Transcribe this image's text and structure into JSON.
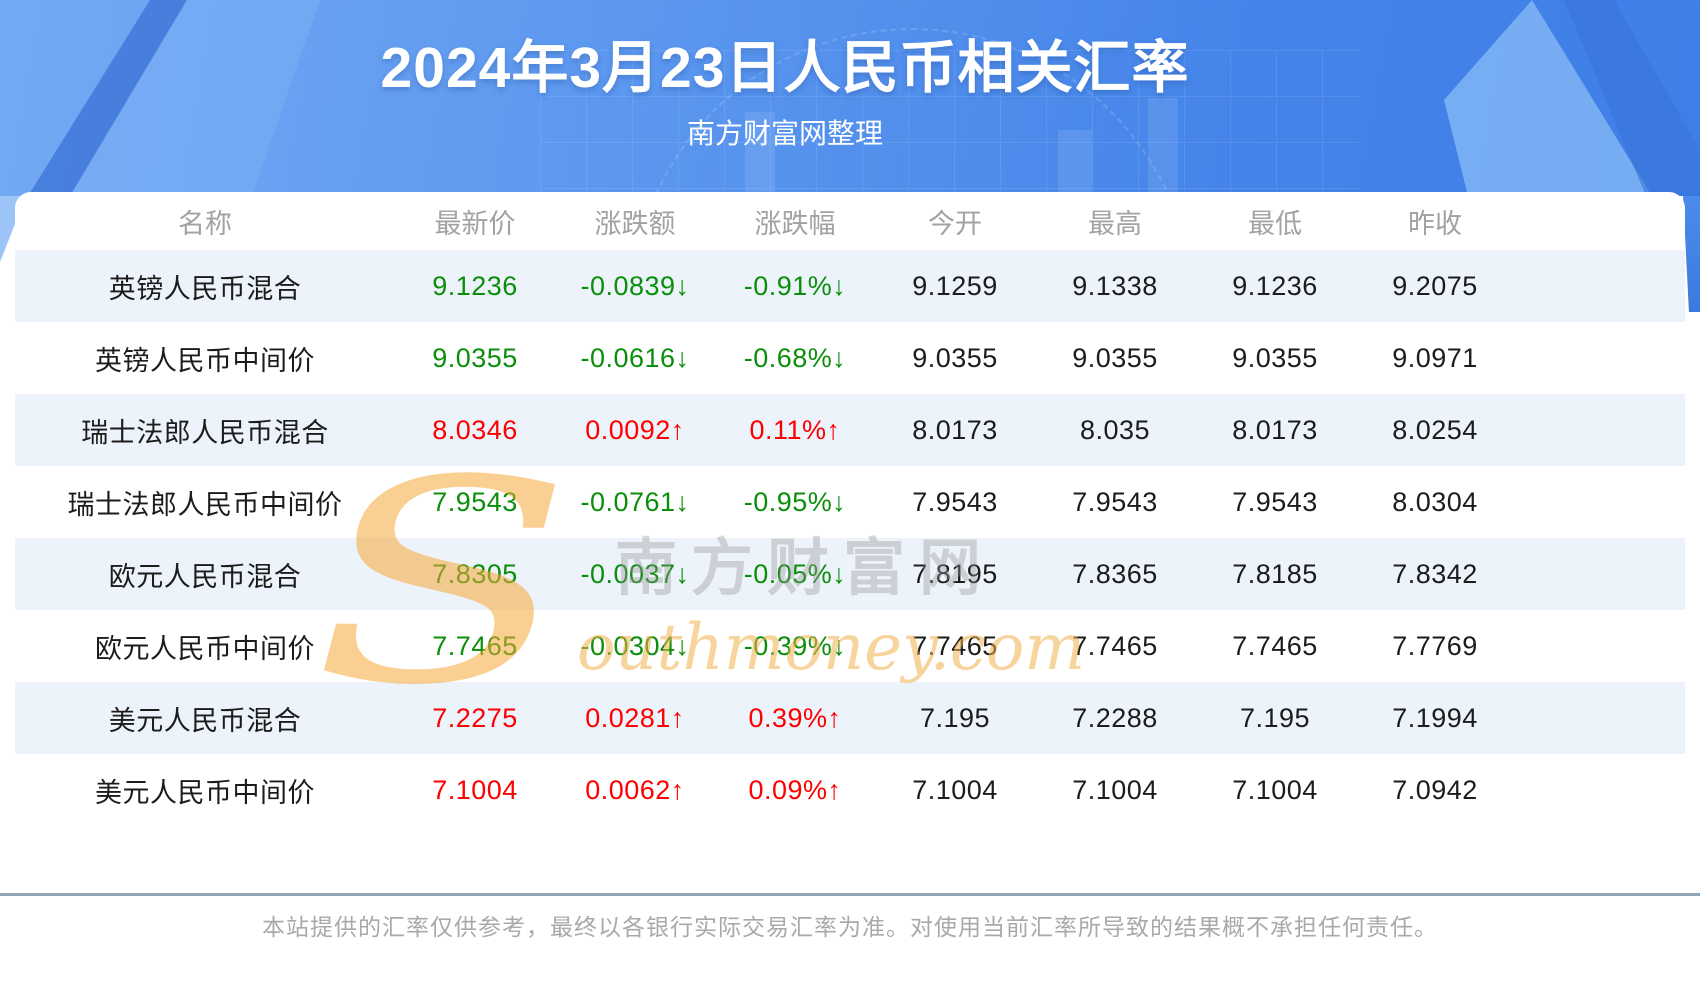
{
  "banner": {
    "title": "2024年3月23日人民币相关汇率",
    "subtitle": "南方财富网整理"
  },
  "chart_data": {
    "type": "table",
    "title": "2024年3月23日人民币相关汇率",
    "columns": [
      "名称",
      "最新价",
      "涨跌额",
      "涨跌幅",
      "今开",
      "最高",
      "最低",
      "昨收"
    ],
    "rows": [
      [
        "英镑人民币混合",
        "9.1236",
        "-0.0839↓",
        "-0.91%↓",
        "9.1259",
        "9.1338",
        "9.1236",
        "9.2075"
      ],
      [
        "英镑人民币中间价",
        "9.0355",
        "-0.0616↓",
        "-0.68%↓",
        "9.0355",
        "9.0355",
        "9.0355",
        "9.0971"
      ],
      [
        "瑞士法郎人民币混合",
        "8.0346",
        "0.0092↑",
        "0.11%↑",
        "8.0173",
        "8.035",
        "8.0173",
        "8.0254"
      ],
      [
        "瑞士法郎人民币中间价",
        "7.9543",
        "-0.0761↓",
        "-0.95%↓",
        "7.9543",
        "7.9543",
        "7.9543",
        "8.0304"
      ],
      [
        "欧元人民币混合",
        "7.8305",
        "-0.0037↓",
        "-0.05%↓",
        "7.8195",
        "7.8365",
        "7.8185",
        "7.8342"
      ],
      [
        "欧元人民币中间价",
        "7.7465",
        "-0.0304↓",
        "-0.39%↓",
        "7.7465",
        "7.7465",
        "7.7465",
        "7.7769"
      ],
      [
        "美元人民币混合",
        "7.2275",
        "0.0281↑",
        "0.39%↑",
        "7.195",
        "7.2288",
        "7.195",
        "7.1994"
      ],
      [
        "美元人民币中间价",
        "7.1004",
        "0.0062↑",
        "0.09%↑",
        "7.1004",
        "7.1004",
        "7.1004",
        "7.0942"
      ]
    ]
  },
  "watermark": {
    "initial": "S",
    "cn": "南方财富网",
    "en": "outhmoney.com"
  },
  "footer": {
    "disclaimer": "本站提供的汇率仅供参考，最终以各银行实际交易汇率为准。对使用当前汇率所导致的结果概不承担任何责任。"
  },
  "colors": {
    "up": "#fd0000",
    "down": "#0b8f0b",
    "stripe": "#edf3fb",
    "banner": "#4f8eea",
    "divider": "#8fa4b6"
  }
}
